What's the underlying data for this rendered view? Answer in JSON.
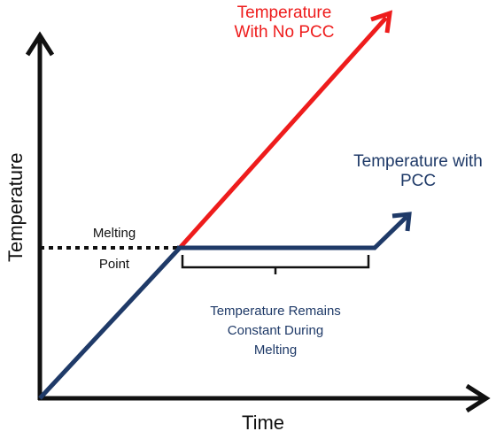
{
  "axes": {
    "x_title": "Time",
    "y_title": "Temperature"
  },
  "labels": {
    "no_pcc_line1": "Temperature",
    "no_pcc_line2": "With No PCC",
    "pcc_line1": "Temperature with",
    "pcc_line2": "PCC",
    "melting_point_line1": "Melting",
    "melting_point_line2": "Point",
    "plateau_line1": "Temperature Remains",
    "plateau_line2": "Constant During",
    "plateau_line3": "Melting"
  },
  "colors": {
    "no_pcc": "#ee1c1c",
    "pcc": "#1f3a68",
    "axis": "#111111"
  }
}
